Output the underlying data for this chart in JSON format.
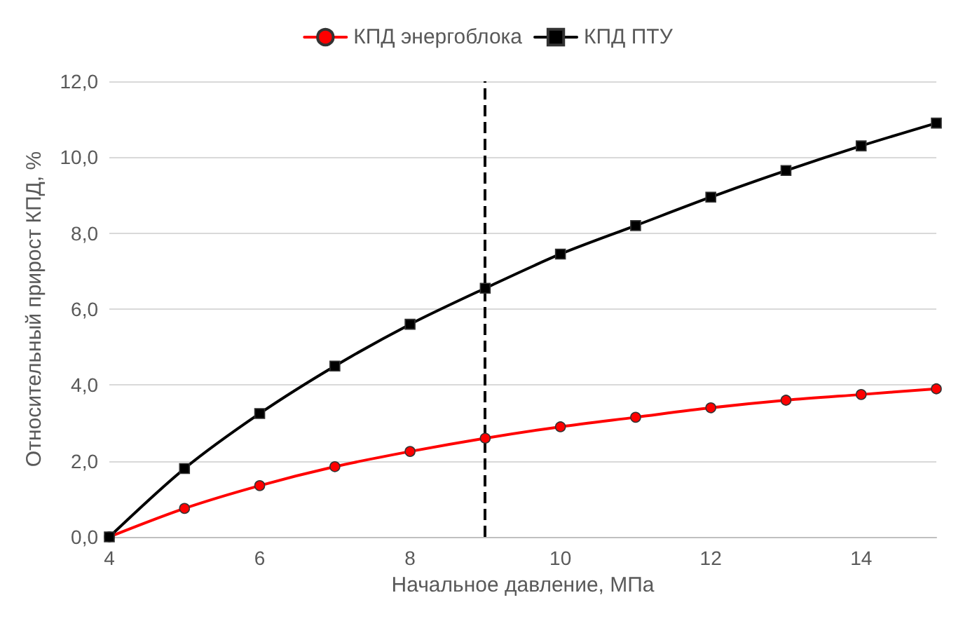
{
  "chart_data": {
    "type": "line",
    "xlabel": "Начальное давление, МПа",
    "ylabel": "Относительный прирост КПД, %",
    "x": [
      4,
      5,
      6,
      7,
      8,
      9,
      10,
      11,
      12,
      13,
      14,
      15
    ],
    "series": [
      {
        "name": "КПД энергоблока",
        "color": "#ff0000",
        "marker": "circle",
        "values": [
          0,
          0.75,
          1.35,
          1.85,
          2.25,
          2.6,
          2.9,
          3.15,
          3.4,
          3.6,
          3.75,
          3.9
        ]
      },
      {
        "name": "КПД ПТУ",
        "color": "#000000",
        "marker": "square",
        "values": [
          0,
          1.8,
          3.25,
          4.5,
          5.6,
          6.55,
          7.45,
          8.2,
          8.95,
          9.65,
          10.3,
          10.9
        ]
      }
    ],
    "xlim": [
      4,
      15
    ],
    "xticks": [
      4,
      6,
      8,
      10,
      12,
      14
    ],
    "ylim": [
      0,
      12
    ],
    "yticks": [
      {
        "value": 0,
        "label": "0,0"
      },
      {
        "value": 2,
        "label": "2,0"
      },
      {
        "value": 4,
        "label": "4,0"
      },
      {
        "value": 6,
        "label": "6,0"
      },
      {
        "value": 8,
        "label": "8,0"
      },
      {
        "value": 10,
        "label": "10,0"
      },
      {
        "value": 12,
        "label": "12,0"
      }
    ],
    "ref_lines": [
      {
        "axis": "x",
        "value": 9,
        "color": "#000000",
        "line_style": "dashed"
      }
    ],
    "grid": "y",
    "legend": "top",
    "line_style": "solid"
  }
}
